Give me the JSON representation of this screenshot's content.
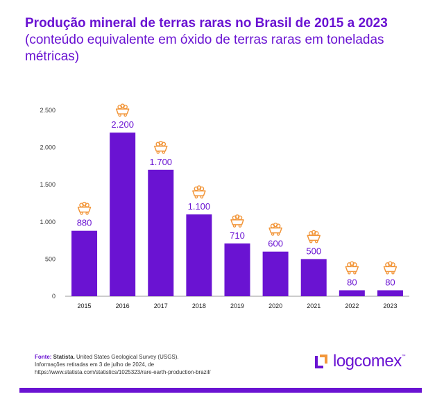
{
  "title_bold": "Produção mineral de terras raras no Brasil de 2015 a 2023",
  "title_rest": " (conteúdo equivalente em óxido de terras raras em toneladas métricas)",
  "chart_data": {
    "type": "bar",
    "categories": [
      "2015",
      "2016",
      "2017",
      "2018",
      "2019",
      "2020",
      "2021",
      "2022",
      "2023"
    ],
    "values": [
      880,
      2200,
      1700,
      1100,
      710,
      600,
      500,
      80,
      80
    ],
    "value_labels": [
      "880",
      "2.200",
      "1.700",
      "1.100",
      "710",
      "600",
      "500",
      "80",
      "80"
    ],
    "yticks": [
      0,
      500,
      1000,
      1500,
      2000,
      2500
    ],
    "ytick_labels": [
      "0",
      "500",
      "1.000",
      "1.500",
      "2.000",
      "2.500"
    ],
    "ylim": [
      0,
      2500
    ],
    "grid": false,
    "bar_color": "#6a13d2",
    "icon": "mine-cart-icon",
    "icon_color": "#f2963a"
  },
  "source": {
    "label": "Fonte:",
    "org": "Statista.",
    "line1_rest": " United States Geological Survey (USGS).",
    "line2": "Informações retiradas em 3 de julho de 2024, de",
    "line3": "https://www.statista.com/statistics/1025323/rare-earth-production-brazil/"
  },
  "logo": {
    "text": "logcomex",
    "tm": "™"
  },
  "colors": {
    "accent": "#6a13d2",
    "icon": "#f2963a"
  }
}
